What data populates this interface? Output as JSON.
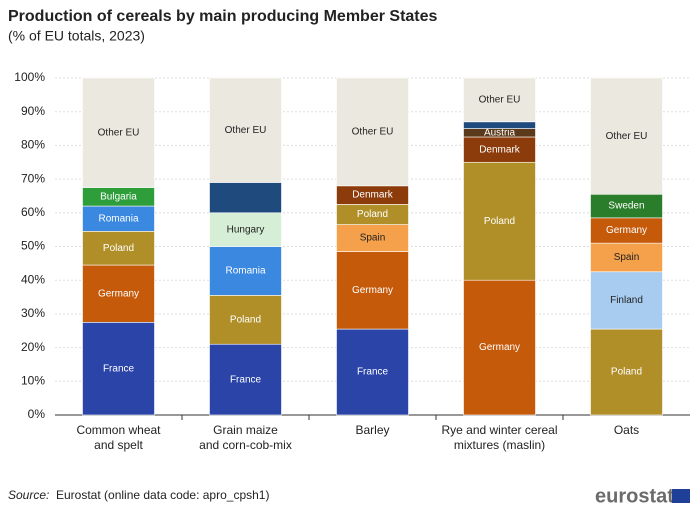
{
  "chart_data": {
    "type": "stacked_bar",
    "title": "Production of cereals by main producing Member States",
    "subtitle": "(% of EU totals, 2023)",
    "ylim": [
      0,
      100
    ],
    "yticks": [
      {
        "value": 0,
        "label": "0%"
      },
      {
        "value": 10,
        "label": "10%"
      },
      {
        "value": 20,
        "label": "20%"
      },
      {
        "value": 30,
        "label": "30%"
      },
      {
        "value": 40,
        "label": "40%"
      },
      {
        "value": 50,
        "label": "50%"
      },
      {
        "value": 60,
        "label": "60%"
      },
      {
        "value": 70,
        "label": "70%"
      },
      {
        "value": 80,
        "label": "80%"
      },
      {
        "value": 90,
        "label": "90%"
      },
      {
        "value": 100,
        "label": "100%"
      }
    ],
    "stacks": [
      {
        "category": "Common wheat\nand spelt",
        "segments": [
          {
            "label": "France",
            "color": "#2a44a8",
            "value": 27.5
          },
          {
            "label": "Germany",
            "color": "#c55a0a",
            "value": 17
          },
          {
            "label": "Poland",
            "color": "#b08f28",
            "value": 10
          },
          {
            "label": "Romania",
            "color": "#3a88e0",
            "value": 7.5
          },
          {
            "label": "Bulgaria",
            "color": "#2e9e3a",
            "value": 5.5
          },
          {
            "label": "Other EU",
            "color": "#ebe8df",
            "value": 32.5
          }
        ]
      },
      {
        "category": "Grain maize\nand corn-cob-mix",
        "segments": [
          {
            "label": "France",
            "color": "#2a44a8",
            "value": 21
          },
          {
            "label": "Poland",
            "color": "#b08f28",
            "value": 14.5
          },
          {
            "label": "Romania",
            "color": "#3a88e0",
            "value": 14.5
          },
          {
            "label": "Hungary",
            "color": "#d6eed6",
            "value": 10
          },
          {
            "label": null,
            "color": "#1f4a7e",
            "value": 9
          },
          {
            "label": "Other EU",
            "color": "#ebe8df",
            "value": 31
          }
        ]
      },
      {
        "category": "Barley",
        "segments": [
          {
            "label": "France",
            "color": "#2a44a8",
            "value": 25.5
          },
          {
            "label": "Germany",
            "color": "#c55a0a",
            "value": 23
          },
          {
            "label": "Spain",
            "color": "#f5a04a",
            "value": 8
          },
          {
            "label": "Poland",
            "color": "#b08f28",
            "value": 6
          },
          {
            "label": "Denmark",
            "color": "#8c3b0a",
            "value": 5.5
          },
          {
            "label": "Other EU",
            "color": "#ebe8df",
            "value": 32
          }
        ]
      },
      {
        "category": "Rye and winter cereal\nmixtures (maslin)",
        "segments": [
          {
            "label": "Germany",
            "color": "#c55a0a",
            "value": 40
          },
          {
            "label": "Poland",
            "color": "#b08f28",
            "value": 35
          },
          {
            "label": "Denmark",
            "color": "#8c3b0a",
            "value": 7.5
          },
          {
            "label": "Austria",
            "color": "#5a3a1a",
            "value": 2.5
          },
          {
            "label": null,
            "color": "#1f4a7e",
            "value": 2
          },
          {
            "label": "Other EU",
            "color": "#ebe8df",
            "value": 13
          }
        ]
      },
      {
        "category": "Oats",
        "segments": [
          {
            "label": "Poland",
            "color": "#b08f28",
            "value": 25.5
          },
          {
            "label": "Finland",
            "color": "#a8ccf0",
            "value": 17
          },
          {
            "label": "Spain",
            "color": "#f5a04a",
            "value": 8.5
          },
          {
            "label": "Germany",
            "color": "#c55a0a",
            "value": 7.5
          },
          {
            "label": "Sweden",
            "color": "#2a7d2a",
            "value": 7
          },
          {
            "label": "Other EU",
            "color": "#ebe8df",
            "value": 34.5
          }
        ]
      }
    ],
    "grid": true,
    "source_label": "Source:",
    "source": "Eurostat (online data code: apro_cpsh1)",
    "logo": "eurostat"
  }
}
